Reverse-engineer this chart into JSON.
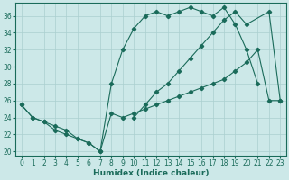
{
  "xlabel": "Humidex (Indice chaleur)",
  "bg_color": "#cce8e8",
  "grid_color": "#aacfcf",
  "line_color": "#1a6b5a",
  "xlim": [
    -0.5,
    23.5
  ],
  "ylim": [
    19.5,
    37.5
  ],
  "yticks": [
    20,
    22,
    24,
    26,
    28,
    30,
    32,
    34,
    36
  ],
  "xticks": [
    0,
    1,
    2,
    3,
    4,
    5,
    6,
    7,
    8,
    9,
    10,
    11,
    12,
    13,
    14,
    15,
    16,
    17,
    18,
    19,
    20,
    21,
    22,
    23
  ],
  "line1_x": [
    0,
    1,
    2,
    3,
    4,
    5,
    6,
    7,
    8,
    9,
    10,
    11,
    12,
    13,
    14,
    15,
    16,
    17,
    18,
    19,
    20,
    21
  ],
  "line1_y": [
    25.5,
    24.0,
    23.5,
    23.0,
    22.5,
    21.5,
    21.0,
    20.0,
    28.0,
    32.0,
    34.5,
    36.0,
    36.5,
    36.0,
    36.5,
    37.0,
    36.5,
    36.0,
    37.0,
    35.0,
    32.0,
    28.0
  ],
  "line2_x": [
    0,
    1,
    2,
    3,
    4,
    5,
    6,
    7,
    8,
    9,
    10,
    11,
    12,
    13,
    14,
    15,
    16,
    17,
    18,
    19,
    20,
    21,
    22,
    23
  ],
  "line2_y": [
    25.5,
    24.0,
    23.5,
    22.5,
    22.0,
    21.5,
    21.0,
    20.0,
    24.5,
    24.0,
    24.5,
    25.0,
    25.5,
    26.0,
    26.5,
    27.0,
    27.5,
    28.0,
    28.5,
    29.5,
    30.5,
    32.0,
    26.0,
    26.0
  ],
  "line3_x": [
    10,
    11,
    12,
    13,
    14,
    15,
    16,
    17,
    18,
    19,
    20,
    22,
    23
  ],
  "line3_y": [
    24.0,
    25.5,
    27.0,
    28.0,
    29.5,
    31.0,
    32.5,
    34.0,
    35.5,
    36.5,
    35.0,
    36.5,
    26.0
  ]
}
